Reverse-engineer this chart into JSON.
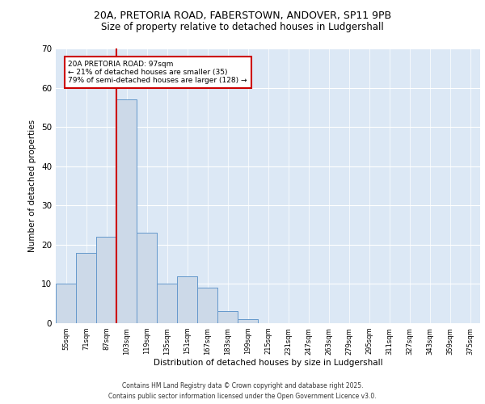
{
  "title_line1": "20A, PRETORIA ROAD, FABERSTOWN, ANDOVER, SP11 9PB",
  "title_line2": "Size of property relative to detached houses in Ludgershall",
  "xlabel": "Distribution of detached houses by size in Ludgershall",
  "ylabel": "Number of detached properties",
  "bar_color": "#ccd9e8",
  "bar_edge_color": "#6699cc",
  "categories": [
    "55sqm",
    "71sqm",
    "87sqm",
    "103sqm",
    "119sqm",
    "135sqm",
    "151sqm",
    "167sqm",
    "183sqm",
    "199sqm",
    "215sqm",
    "231sqm",
    "247sqm",
    "263sqm",
    "279sqm",
    "295sqm",
    "311sqm",
    "327sqm",
    "343sqm",
    "359sqm",
    "375sqm"
  ],
  "values": [
    10,
    18,
    22,
    57,
    23,
    10,
    12,
    9,
    3,
    1,
    0,
    0,
    0,
    0,
    0,
    0,
    0,
    0,
    0,
    0,
    0
  ],
  "ylim": [
    0,
    70
  ],
  "yticks": [
    0,
    10,
    20,
    30,
    40,
    50,
    60,
    70
  ],
  "red_line_x": 2.5,
  "annotation_text": "20A PRETORIA ROAD: 97sqm\n← 21% of detached houses are smaller (35)\n79% of semi-detached houses are larger (128) →",
  "annotation_box_color": "#ffffff",
  "annotation_box_edge": "#cc0000",
  "background_color": "#dce8f5",
  "grid_color": "#ffffff",
  "footer_line1": "Contains HM Land Registry data © Crown copyright and database right 2025.",
  "footer_line2": "Contains public sector information licensed under the Open Government Licence v3.0."
}
